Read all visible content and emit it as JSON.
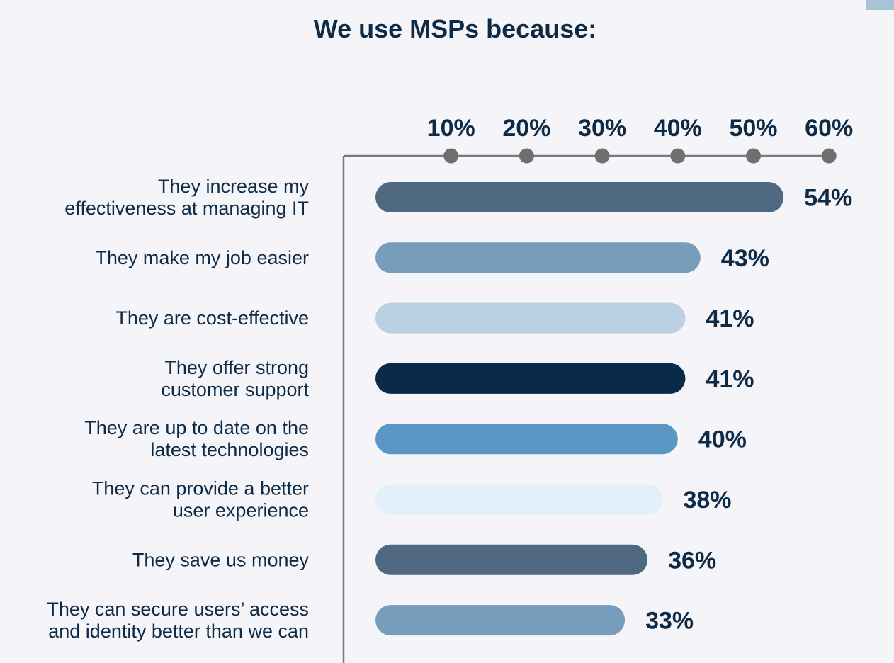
{
  "chart_data": {
    "type": "bar",
    "orientation": "horizontal",
    "title": "We use MSPs because:",
    "categories": [
      [
        "They increase my",
        "effectiveness at managing IT"
      ],
      [
        "They make my job easier"
      ],
      [
        "They are cost-effective"
      ],
      [
        "They offer strong",
        "customer support"
      ],
      [
        "They are up to date on the",
        "latest technologies"
      ],
      [
        "They can provide a better",
        "user experience"
      ],
      [
        "They save us money"
      ],
      [
        "They can secure users’ access",
        "and identity better than we can"
      ]
    ],
    "values": [
      54,
      43,
      41,
      41,
      40,
      38,
      36,
      33
    ],
    "value_labels": [
      "54%",
      "43%",
      "41%",
      "41%",
      "40%",
      "38%",
      "36%",
      "33%"
    ],
    "bar_colors": [
      "#4f6a80",
      "#779dba",
      "#b9d1e2",
      "#0a2a4a",
      "#5a97c4",
      "#e2f0fa",
      "#4f6a80",
      "#779dba"
    ],
    "xticks": [
      10,
      20,
      30,
      40,
      50,
      60
    ],
    "xtick_labels": [
      "10%",
      "20%",
      "30%",
      "40%",
      "50%",
      "60%"
    ],
    "xlim": [
      0,
      60
    ],
    "axis_position": "top",
    "grid": false,
    "legend": "none"
  }
}
